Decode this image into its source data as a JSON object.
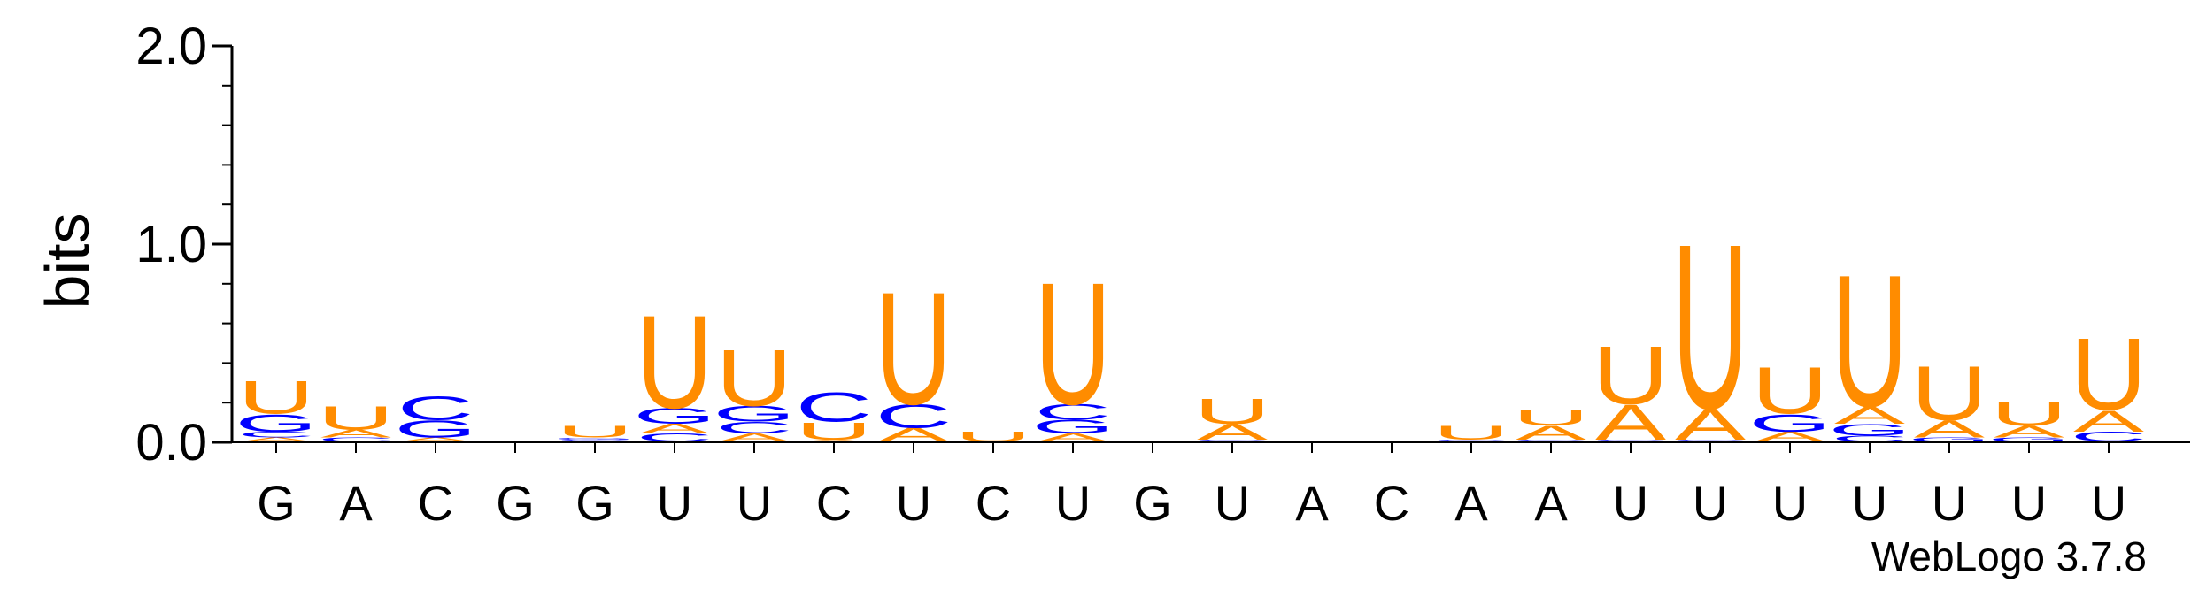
{
  "chart_data": {
    "type": "sequence-logo",
    "ylabel": "bits",
    "ylim": [
      0,
      2.0
    ],
    "yticks": [
      "0.0",
      "1.0",
      "2.0"
    ],
    "credit": "WebLogo 3.7.8",
    "colors": {
      "U": "#FF8C00",
      "A": "#FF8C00",
      "G": "#0000FF",
      "C": "#0000FF"
    },
    "positions": [
      {
        "label": "G",
        "stack": [
          [
            "A",
            0.02
          ],
          [
            "C",
            0.03
          ],
          [
            "G",
            0.09
          ],
          [
            "U",
            0.17
          ]
        ]
      },
      {
        "label": "A",
        "stack": [
          [
            "C",
            0.02
          ],
          [
            "A",
            0.04
          ],
          [
            "U",
            0.12
          ]
        ]
      },
      {
        "label": "C",
        "stack": [
          [
            "A",
            0.02
          ],
          [
            "G",
            0.09
          ],
          [
            "C",
            0.12
          ]
        ]
      },
      {
        "label": "G",
        "stack": []
      },
      {
        "label": "G",
        "stack": [
          [
            "C",
            0.01
          ],
          [
            "G",
            0.01
          ],
          [
            "U",
            0.06
          ]
        ]
      },
      {
        "label": "U",
        "stack": [
          [
            "C",
            0.04
          ],
          [
            "A",
            0.05
          ],
          [
            "G",
            0.08
          ],
          [
            "U",
            0.48
          ]
        ]
      },
      {
        "label": "U",
        "stack": [
          [
            "A",
            0.04
          ],
          [
            "C",
            0.06
          ],
          [
            "G",
            0.08
          ],
          [
            "U",
            0.29
          ]
        ]
      },
      {
        "label": "C",
        "stack": [
          [
            "A",
            0.01
          ],
          [
            "U",
            0.09
          ],
          [
            "C",
            0.15
          ]
        ]
      },
      {
        "label": "U",
        "stack": [
          [
            "A",
            0.07
          ],
          [
            "C",
            0.12
          ],
          [
            "U",
            0.58
          ]
        ]
      },
      {
        "label": "C",
        "stack": [
          [
            "U",
            0.05
          ]
        ]
      },
      {
        "label": "U",
        "stack": [
          [
            "A",
            0.04
          ],
          [
            "G",
            0.07
          ],
          [
            "C",
            0.08
          ],
          [
            "U",
            0.63
          ]
        ]
      },
      {
        "label": "G",
        "stack": []
      },
      {
        "label": "U",
        "stack": [
          [
            "C",
            0.01
          ],
          [
            "A",
            0.08
          ],
          [
            "U",
            0.13
          ]
        ]
      },
      {
        "label": "A",
        "stack": []
      },
      {
        "label": "C",
        "stack": []
      },
      {
        "label": "A",
        "stack": [
          [
            "C",
            0.01
          ],
          [
            "U",
            0.07
          ]
        ]
      },
      {
        "label": "A",
        "stack": [
          [
            "C",
            0.01
          ],
          [
            "A",
            0.07
          ],
          [
            "U",
            0.08
          ]
        ]
      },
      {
        "label": "U",
        "stack": [
          [
            "C",
            0.01
          ],
          [
            "A",
            0.18
          ],
          [
            "U",
            0.3
          ]
        ]
      },
      {
        "label": "U",
        "stack": [
          [
            "C",
            0.01
          ],
          [
            "A",
            0.16
          ],
          [
            "U",
            0.85
          ]
        ]
      },
      {
        "label": "U",
        "stack": [
          [
            "A",
            0.05
          ],
          [
            "G",
            0.09
          ],
          [
            "U",
            0.24
          ]
        ]
      },
      {
        "label": "U",
        "stack": [
          [
            "C",
            0.03
          ],
          [
            "G",
            0.06
          ],
          [
            "A",
            0.09
          ],
          [
            "U",
            0.68
          ]
        ]
      },
      {
        "label": "U",
        "stack": [
          [
            "G",
            0.02
          ],
          [
            "A",
            0.09
          ],
          [
            "U",
            0.28
          ]
        ]
      },
      {
        "label": "U",
        "stack": [
          [
            "G",
            0.02
          ],
          [
            "A",
            0.06
          ],
          [
            "U",
            0.12
          ]
        ]
      },
      {
        "label": "U",
        "stack": [
          [
            "C",
            0.05
          ],
          [
            "A",
            0.11
          ],
          [
            "U",
            0.37
          ]
        ]
      }
    ]
  }
}
